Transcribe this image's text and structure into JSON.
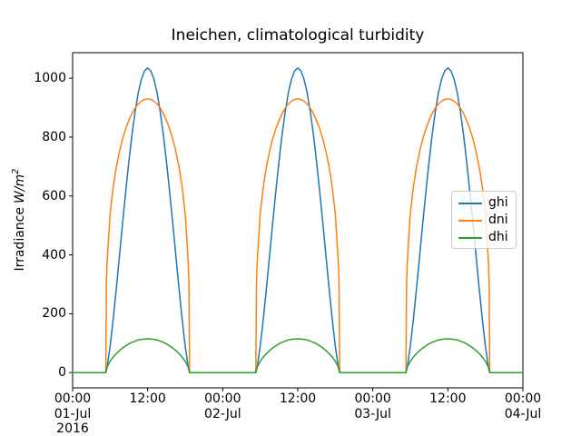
{
  "figure": {
    "title": "Ineichen, climatological turbidity",
    "ylabel_prefix": "Irradiance",
    "ylabel_math": "W/m",
    "ylabel_sup": "2",
    "background": "#ffffff",
    "spine_color": "#000000"
  },
  "legend": {
    "items": [
      {
        "label": "ghi",
        "color": "#1f77b4"
      },
      {
        "label": "dni",
        "color": "#ff7f0e"
      },
      {
        "label": "dhi",
        "color": "#2ca02c"
      }
    ]
  },
  "chart_data": {
    "type": "line",
    "title": "Ineichen, climatological turbidity",
    "xlabel": "",
    "ylabel": "Irradiance W/m^2",
    "x_unit": "hours since 2016-07-01 00:00",
    "xlim": [
      0,
      72
    ],
    "ylim": [
      -51.75,
      1086.75
    ],
    "grid": false,
    "legend_position": "center right",
    "y_ticks": [
      "0",
      "200",
      "400",
      "600",
      "800",
      "1000"
    ],
    "y_tick_values": [
      0,
      200,
      400,
      600,
      800,
      1000
    ],
    "x_ticks": [
      {
        "hour": 0,
        "lines": [
          "00:00",
          "01-Jul",
          "2016"
        ]
      },
      {
        "hour": 12,
        "lines": [
          "12:00"
        ]
      },
      {
        "hour": 24,
        "lines": [
          "00:00",
          "02-Jul"
        ]
      },
      {
        "hour": 36,
        "lines": [
          "12:00"
        ]
      },
      {
        "hour": 48,
        "lines": [
          "00:00",
          "03-Jul"
        ]
      },
      {
        "hour": 60,
        "lines": [
          "12:00"
        ]
      },
      {
        "hour": 72,
        "lines": [
          "00:00",
          "04-Jul"
        ]
      }
    ],
    "days": 3,
    "sunrise_hour": 5.3,
    "sunset_hour": 18.7,
    "daily_hours": [
      0,
      5.3,
      5.4,
      5.5,
      6,
      6.5,
      7,
      7.5,
      8,
      8.5,
      9,
      9.5,
      10,
      10.5,
      11,
      11.5,
      12,
      12.5,
      13,
      13.5,
      14,
      14.5,
      15,
      15.5,
      16,
      16.5,
      17,
      17.5,
      18,
      18.5,
      18.6,
      18.7,
      24
    ],
    "series": [
      {
        "name": "ghi",
        "color": "#1f77b4",
        "peak": 1035,
        "daily_values": [
          0,
          0,
          7,
          17,
          90,
          184,
          288,
          399,
          510,
          617,
          718,
          809,
          887,
          951,
          997,
          1025,
          1035,
          1025,
          997,
          951,
          887,
          809,
          718,
          617,
          510,
          399,
          288,
          184,
          90,
          17,
          7,
          0,
          0
        ]
      },
      {
        "name": "dni",
        "color": "#ff7f0e",
        "peak": 930,
        "daily_values": [
          0,
          0,
          302,
          371,
          540,
          633,
          700,
          752,
          795,
          829,
          857,
          880,
          899,
          913,
          922,
          928,
          930,
          928,
          922,
          913,
          899,
          880,
          857,
          829,
          795,
          752,
          700,
          633,
          540,
          371,
          302,
          0,
          0
        ]
      },
      {
        "name": "dhi",
        "color": "#2ca02c",
        "peak": 115,
        "daily_values": [
          0,
          0,
          12,
          18,
          39,
          53,
          65,
          75,
          84,
          91,
          98,
          103,
          107,
          111,
          113,
          114,
          115,
          114,
          113,
          111,
          107,
          103,
          98,
          91,
          84,
          75,
          65,
          53,
          39,
          18,
          12,
          0,
          0
        ]
      }
    ]
  }
}
